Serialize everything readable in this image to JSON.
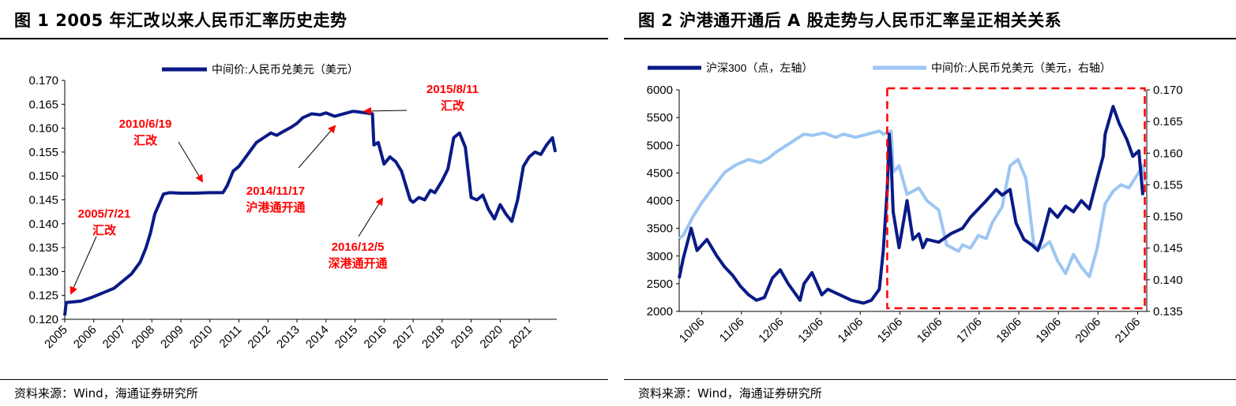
{
  "source_text": "资料来源：Wind，海通证券研究所",
  "colors": {
    "navy": "#0a1a86",
    "light_blue": "#9cc6f3",
    "red": "#ff0000"
  },
  "chart_data": [
    {
      "type": "line",
      "title": "图 1 2005 年汇改以来人民币汇率历史走势",
      "xlabel": "",
      "ylabel": "",
      "x_ticks": [
        "2005",
        "2006",
        "2007",
        "2008",
        "2009",
        "2010",
        "2011",
        "2012",
        "2013",
        "2014",
        "2015",
        "2016",
        "2017",
        "2018",
        "2019",
        "2020",
        "2021"
      ],
      "xlim": [
        2005.0,
        2021.95
      ],
      "ylim": [
        0.12,
        0.17
      ],
      "y_ticks": [
        "0.120",
        "0.125",
        "0.130",
        "0.135",
        "0.140",
        "0.145",
        "0.150",
        "0.155",
        "0.160",
        "0.165",
        "0.170"
      ],
      "legend": {
        "position": "top",
        "entries": [
          "中间价:人民币兑美元（美元）"
        ]
      },
      "grid": false,
      "series": [
        {
          "name": "中间价:人民币兑美元（美元）",
          "x": [
            2005.0,
            2005.05,
            2005.55,
            2005.9,
            2006.3,
            2006.7,
            2007.0,
            2007.3,
            2007.6,
            2007.8,
            2007.95,
            2008.1,
            2008.4,
            2008.6,
            2009.0,
            2009.5,
            2010.0,
            2010.45,
            2010.6,
            2010.8,
            2011.0,
            2011.3,
            2011.6,
            2011.9,
            2012.1,
            2012.3,
            2012.5,
            2012.8,
            2013.0,
            2013.2,
            2013.5,
            2013.8,
            2014.0,
            2014.3,
            2014.6,
            2014.9,
            2015.0,
            2015.6,
            2015.65,
            2015.8,
            2016.0,
            2016.2,
            2016.4,
            2016.6,
            2016.9,
            2017.0,
            2017.2,
            2017.4,
            2017.6,
            2017.75,
            2018.0,
            2018.2,
            2018.4,
            2018.6,
            2018.8,
            2019.0,
            2019.2,
            2019.4,
            2019.6,
            2019.8,
            2020.0,
            2020.2,
            2020.4,
            2020.6,
            2020.8,
            2021.0,
            2021.2,
            2021.4,
            2021.6,
            2021.8,
            2021.9
          ],
          "values": [
            0.1208,
            0.1235,
            0.1238,
            0.1245,
            0.1255,
            0.1265,
            0.128,
            0.1295,
            0.132,
            0.135,
            0.138,
            0.142,
            0.1462,
            0.1465,
            0.1464,
            0.1464,
            0.1465,
            0.1465,
            0.148,
            0.151,
            0.152,
            0.1545,
            0.157,
            0.1582,
            0.159,
            0.1585,
            0.1592,
            0.1602,
            0.161,
            0.1622,
            0.163,
            0.1628,
            0.1632,
            0.1625,
            0.163,
            0.1635,
            0.1635,
            0.163,
            0.1565,
            0.157,
            0.1525,
            0.154,
            0.153,
            0.151,
            0.145,
            0.1445,
            0.1455,
            0.145,
            0.147,
            0.1465,
            0.149,
            0.1515,
            0.158,
            0.159,
            0.156,
            0.1455,
            0.145,
            0.146,
            0.143,
            0.141,
            0.144,
            0.142,
            0.1405,
            0.145,
            0.152,
            0.154,
            0.155,
            0.1545,
            0.1565,
            0.158,
            0.155
          ]
        }
      ],
      "annotations": [
        {
          "label": "2005/7/21",
          "sublabel": "汇改"
        },
        {
          "label": "2010/6/19",
          "sublabel": "汇改"
        },
        {
          "label": "2014/11/17",
          "sublabel": "沪港通开通"
        },
        {
          "label": "2015/8/11",
          "sublabel": "汇改"
        },
        {
          "label": "2016/12/5",
          "sublabel": "深港通开通"
        }
      ]
    },
    {
      "type": "line",
      "title": "图 2 沪港通开通后 A 股走势与人民币汇率呈正相关关系",
      "xlabel": "",
      "ylabel": "",
      "x_ticks": [
        "10/06",
        "11/06",
        "12/06",
        "13/06",
        "14/06",
        "15/06",
        "16/06",
        "17/06",
        "18/06",
        "19/06",
        "20/06",
        "21/06"
      ],
      "xlim": [
        2009.85,
        2021.65
      ],
      "y_left": {
        "lim": [
          2000,
          6000
        ],
        "ticks": [
          "2000",
          "2500",
          "3000",
          "3500",
          "4000",
          "4500",
          "5000",
          "5500",
          "6000"
        ]
      },
      "y_right": {
        "lim": [
          0.135,
          0.17
        ],
        "ticks": [
          "0.135",
          "0.140",
          "0.145",
          "0.150",
          "0.155",
          "0.160",
          "0.165",
          "0.170"
        ]
      },
      "legend": {
        "position": "top",
        "entries": [
          "沪深300（点，左轴）",
          "中间价:人民币兑美元（美元，右轴）"
        ]
      },
      "grid": false,
      "highlight_box": {
        "from": 2015.1,
        "to": 2021.6,
        "style": "dashed-red"
      },
      "series": [
        {
          "name": "沪深300（点，左轴）",
          "axis": "left",
          "x": [
            2009.85,
            2009.95,
            2010.15,
            2010.3,
            2010.55,
            2010.8,
            2011.0,
            2011.2,
            2011.4,
            2011.6,
            2011.8,
            2012.0,
            2012.2,
            2012.4,
            2012.6,
            2012.9,
            2013.0,
            2013.2,
            2013.45,
            2013.6,
            2013.9,
            2014.2,
            2014.5,
            2014.7,
            2014.9,
            2015.0,
            2015.1,
            2015.15,
            2015.2,
            2015.25,
            2015.4,
            2015.6,
            2015.75,
            2015.9,
            2016.0,
            2016.1,
            2016.4,
            2016.7,
            2017.0,
            2017.2,
            2017.4,
            2017.6,
            2017.85,
            2018.0,
            2018.2,
            2018.35,
            2018.55,
            2018.75,
            2018.9,
            2019.0,
            2019.2,
            2019.4,
            2019.6,
            2019.8,
            2020.0,
            2020.2,
            2020.4,
            2020.55,
            2020.6,
            2020.7,
            2020.8,
            2020.95,
            2021.15,
            2021.3,
            2021.45,
            2021.55
          ],
          "values": [
            2600,
            2950,
            3500,
            3100,
            3300,
            3000,
            2800,
            2650,
            2450,
            2300,
            2200,
            2250,
            2600,
            2750,
            2500,
            2200,
            2500,
            2700,
            2300,
            2400,
            2300,
            2200,
            2150,
            2200,
            2400,
            3100,
            4200,
            5200,
            4700,
            3800,
            3150,
            4000,
            3300,
            3400,
            3150,
            3300,
            3250,
            3400,
            3500,
            3700,
            3850,
            4000,
            4200,
            4100,
            4200,
            3600,
            3300,
            3200,
            3100,
            3300,
            3850,
            3700,
            3900,
            3800,
            4000,
            3850,
            4400,
            4800,
            5200,
            5450,
            5700,
            5400,
            5100,
            4800,
            4900,
            4100
          ]
        },
        {
          "name": "中间价:人民币兑美元（美元，右轴）",
          "axis": "right",
          "x": [
            2009.85,
            2009.95,
            2010.2,
            2010.4,
            2010.7,
            2011.0,
            2011.3,
            2011.6,
            2011.9,
            2012.1,
            2012.3,
            2012.5,
            2012.8,
            2013.0,
            2013.2,
            2013.5,
            2013.8,
            2014.0,
            2014.3,
            2014.6,
            2014.9,
            2015.0,
            2015.2,
            2015.25,
            2015.4,
            2015.6,
            2015.9,
            2016.1,
            2016.4,
            2016.6,
            2016.9,
            2017.0,
            2017.2,
            2017.4,
            2017.6,
            2017.75,
            2018.0,
            2018.2,
            2018.4,
            2018.6,
            2018.8,
            2019.0,
            2019.2,
            2019.4,
            2019.6,
            2019.8,
            2020.0,
            2020.2,
            2020.4,
            2020.6,
            2020.8,
            2021.0,
            2021.2,
            2021.4,
            2021.55,
            2021.62
          ],
          "values": [
            0.1465,
            0.147,
            0.15,
            0.152,
            0.1545,
            0.157,
            0.1582,
            0.159,
            0.1585,
            0.1592,
            0.1602,
            0.161,
            0.1622,
            0.163,
            0.1628,
            0.1632,
            0.1625,
            0.163,
            0.1625,
            0.163,
            0.1635,
            0.163,
            0.1635,
            0.157,
            0.158,
            0.1535,
            0.1545,
            0.1525,
            0.151,
            0.1455,
            0.1445,
            0.1455,
            0.145,
            0.147,
            0.1465,
            0.149,
            0.1515,
            0.158,
            0.159,
            0.156,
            0.1455,
            0.145,
            0.146,
            0.143,
            0.141,
            0.144,
            0.142,
            0.1405,
            0.145,
            0.152,
            0.154,
            0.155,
            0.1545,
            0.1565,
            0.158,
            0.1555
          ]
        }
      ]
    }
  ]
}
